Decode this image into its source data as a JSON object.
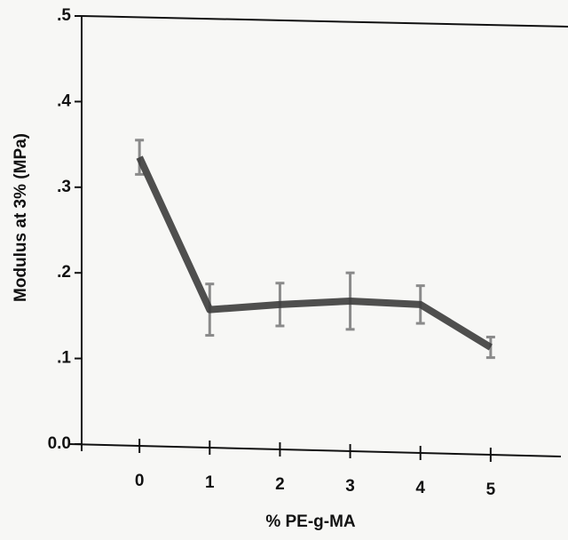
{
  "chart_data": {
    "type": "line",
    "x_label": "% PE-g-MA",
    "y_label": "Modulus at 3% (MPa)",
    "x": [
      0,
      1,
      2,
      3,
      4,
      5
    ],
    "values": [
      0.335,
      0.157,
      0.163,
      0.167,
      0.163,
      0.113
    ],
    "errors": [
      0.02,
      0.03,
      0.025,
      0.033,
      0.022,
      0.012
    ],
    "color": "#3c3c3c",
    "error_color": "#8a8a8a",
    "xlim": [
      -1,
      6
    ],
    "xticks": [
      0,
      1,
      2,
      3,
      4,
      5
    ],
    "ylim": [
      0,
      0.5
    ],
    "yticks": [
      {
        "value": 0,
        "label": "0.0"
      },
      {
        "value": 0.1,
        "label": ".1"
      },
      {
        "value": 0.2,
        "label": ".2"
      },
      {
        "value": 0.3,
        "label": ".3"
      },
      {
        "value": 0.4,
        "label": ".4"
      },
      {
        "value": 0.5,
        "label": ".5"
      }
    ]
  }
}
